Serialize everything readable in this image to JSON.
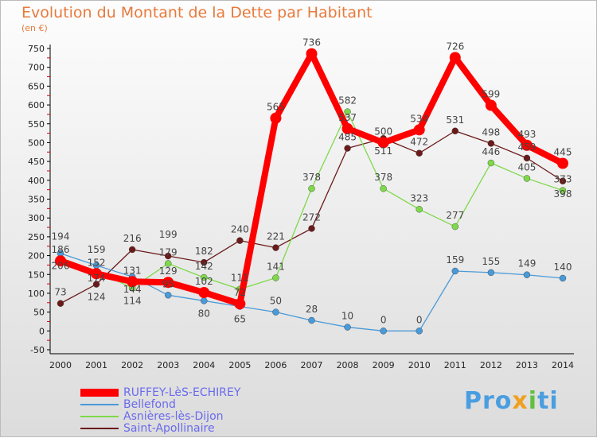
{
  "chart_data": {
    "type": "line",
    "title": "Evolution du Montant de la Dette par Habitant",
    "unit_label": "(en €)",
    "x": [
      "2000",
      "2001",
      "2002",
      "2003",
      "2004",
      "2005",
      "2006",
      "2007",
      "2008",
      "2009",
      "2010",
      "2011",
      "2012",
      "2013",
      "2014"
    ],
    "ylim": [
      -50,
      750
    ],
    "yticks": [
      -50,
      0,
      50,
      100,
      150,
      200,
      250,
      300,
      350,
      400,
      450,
      500,
      550,
      600,
      650,
      700,
      750
    ],
    "grid": false,
    "legend_placement": "bottom-left",
    "series": [
      {
        "name": "RUFFEY-LèS-ECHIREY",
        "color": "#ff0000",
        "values": [
          186,
          152,
          131,
          129,
          102,
          72,
          565,
          736,
          537,
          500,
          534,
          726,
          599,
          493,
          445
        ]
      },
      {
        "name": "Bellefond",
        "color": "#4a9ad8",
        "values": [
          206,
          174,
          144,
          95,
          80,
          65,
          50,
          28,
          10,
          0,
          0,
          159,
          155,
          149,
          140
        ]
      },
      {
        "name": "Asnières-lès-Dijon",
        "color": "#7ed94a",
        "values": [
          194,
          159,
          114,
          179,
          142,
          111,
          141,
          378,
          582,
          378,
          323,
          277,
          446,
          405,
          373
        ]
      },
      {
        "name": "Saint-Apollinaire",
        "color": "#6b1a1a",
        "values": [
          73,
          124,
          216,
          199,
          182,
          240,
          221,
          272,
          485,
          511,
          472,
          531,
          498,
          459,
          398
        ]
      }
    ]
  },
  "logo": "Proxiti"
}
